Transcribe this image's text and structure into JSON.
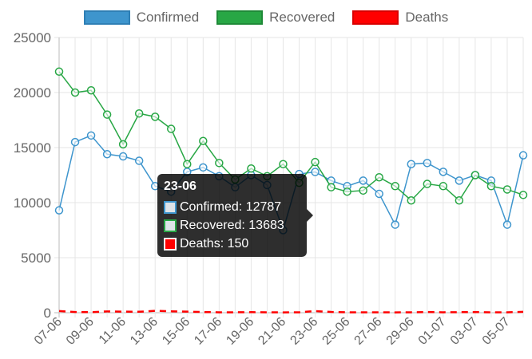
{
  "chart_data": {
    "type": "line",
    "categories": [
      "07-06",
      "08-06",
      "09-06",
      "10-06",
      "11-06",
      "12-06",
      "13-06",
      "14-06",
      "15-06",
      "16-06",
      "17-06",
      "18-06",
      "19-06",
      "20-06",
      "21-06",
      "22-06",
      "23-06",
      "24-06",
      "25-06",
      "26-06",
      "27-06",
      "28-06",
      "29-06",
      "30-06",
      "01-07",
      "02-07",
      "03-07",
      "04-07",
      "05-07",
      "06-07"
    ],
    "tick_labels": [
      "07-06",
      "09-06",
      "11-06",
      "13-06",
      "15-06",
      "17-06",
      "19-06",
      "21-06",
      "23-06",
      "25-06",
      "27-06",
      "29-06",
      "01-07",
      "03-07",
      "05-07"
    ],
    "ylim": [
      0,
      25000
    ],
    "yticks": [
      "0",
      "5000",
      "10000",
      "15000",
      "20000",
      "25000"
    ],
    "grid": true,
    "legend_position": "top",
    "series": [
      {
        "name": "Confirmed",
        "color": "#3e95cd",
        "values": [
          9300,
          15500,
          16100,
          14400,
          14200,
          13800,
          11500,
          11000,
          12800,
          13200,
          12400,
          11400,
          12500,
          11600,
          7500,
          12600,
          12787,
          12000,
          11500,
          12000,
          10800,
          8000,
          13500,
          13600,
          12800,
          12000,
          12500,
          12000,
          8000,
          14300
        ]
      },
      {
        "name": "Recovered",
        "color": "#28a745",
        "values": [
          21900,
          20000,
          20200,
          18000,
          15300,
          18100,
          17800,
          16700,
          13500,
          15600,
          13600,
          12100,
          13100,
          12400,
          13500,
          11800,
          13683,
          11400,
          11000,
          11100,
          12300,
          11500,
          10200,
          11700,
          11500,
          10200,
          12500,
          11500,
          11200,
          10700
        ]
      },
      {
        "name": "Deaths",
        "color": "#ff0000",
        "values": [
          150,
          60,
          50,
          120,
          100,
          90,
          170,
          130,
          100,
          60,
          40,
          40,
          50,
          40,
          30,
          40,
          150,
          70,
          40,
          40,
          40,
          30,
          40,
          60,
          40,
          50,
          60,
          30,
          40,
          80
        ]
      }
    ]
  },
  "tooltip": {
    "title": "23-06",
    "rows": [
      "Confirmed: 12787",
      "Recovered: 13683",
      "Deaths: 150"
    ]
  }
}
